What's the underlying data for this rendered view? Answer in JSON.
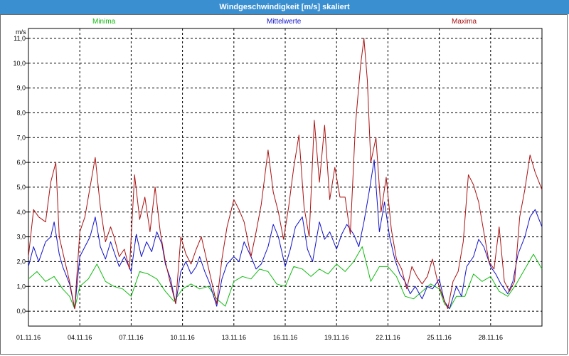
{
  "title": "Windgeschwindigkeit [m/s] skaliert",
  "chart_data": {
    "type": "line",
    "title": "Windgeschwindigkeit [m/s] skaliert",
    "ylabel": "m/s",
    "xlabel": "",
    "x_ticks": [
      "01.11.16",
      "04.11.16",
      "07.11.16",
      "10.11.16",
      "13.11.16",
      "16.11.16",
      "19.11.16",
      "22.11.16",
      "25.11.16",
      "28.11.16"
    ],
    "y_ticks": [
      "0,0",
      "1,0",
      "2,0",
      "3,0",
      "4,0",
      "5,0",
      "6,0",
      "7,0",
      "8,0",
      "9,0",
      "10,0",
      "11,0"
    ],
    "xlim_days": [
      1,
      31
    ],
    "ylim": [
      -0.6,
      11.4
    ],
    "grid": true,
    "legend_position": "top",
    "series": [
      {
        "name": "Minima",
        "color": "#11bb11",
        "days": [
          1,
          1.5,
          2,
          2.5,
          3,
          3.4,
          3.7,
          4,
          4.5,
          5,
          5.5,
          6,
          6.5,
          7,
          7.5,
          8,
          8.5,
          9,
          9.5,
          10,
          10.5,
          11,
          11.5,
          12,
          12.5,
          13,
          13.5,
          14,
          14.5,
          15,
          15.5,
          16,
          16.5,
          17,
          17.5,
          18,
          18.5,
          19,
          19.5,
          20,
          20.5,
          21,
          21.5,
          22,
          22.5,
          23,
          23.5,
          24,
          24.5,
          25,
          25.3,
          25.6,
          26,
          26.5,
          27,
          27.5,
          28,
          28.5,
          29,
          29.5,
          30,
          30.5,
          31
        ],
        "values": [
          1.3,
          1.6,
          1.2,
          1.4,
          0.9,
          0.6,
          0.1,
          1.0,
          1.3,
          1.9,
          1.2,
          1.0,
          0.9,
          0.6,
          1.6,
          1.5,
          1.3,
          0.8,
          0.4,
          0.9,
          1.1,
          0.9,
          1.0,
          0.5,
          0.2,
          1.2,
          1.4,
          1.3,
          1.7,
          1.6,
          1.1,
          1.0,
          1.8,
          1.7,
          1.4,
          1.7,
          1.5,
          1.9,
          1.6,
          2.0,
          2.6,
          1.2,
          1.8,
          1.8,
          1.4,
          0.6,
          0.5,
          0.8,
          1.1,
          0.9,
          0.3,
          0.1,
          0.6,
          0.6,
          1.5,
          1.2,
          1.4,
          0.8,
          0.6,
          1.1,
          1.7,
          2.3,
          1.7
        ]
      },
      {
        "name": "Mittelwerte",
        "color": "#1111cc",
        "days": [
          1,
          1.3,
          1.6,
          2,
          2.3,
          2.5,
          2.8,
          3,
          3.4,
          3.7,
          4,
          4.3,
          4.6,
          4.9,
          5.2,
          5.5,
          5.8,
          6,
          6.3,
          6.6,
          7,
          7.3,
          7.6,
          7.9,
          8.2,
          8.5,
          8.8,
          9,
          9.3,
          9.6,
          9.9,
          10.2,
          10.5,
          10.8,
          11,
          11.3,
          11.6,
          12,
          12.3,
          12.6,
          13,
          13.3,
          13.6,
          14,
          14.3,
          14.6,
          15,
          15.3,
          15.6,
          16,
          16.3,
          16.6,
          17,
          17.3,
          17.6,
          18,
          18.3,
          18.6,
          19,
          19.3,
          19.6,
          20,
          20.3,
          20.6,
          20.9,
          21.2,
          21.5,
          21.8,
          22.1,
          22.4,
          22.7,
          23,
          23.3,
          23.6,
          24,
          24.3,
          24.6,
          25,
          25.3,
          25.6,
          26,
          26.3,
          26.6,
          27,
          27.3,
          27.6,
          28,
          28.3,
          28.6,
          29,
          29.3,
          29.6,
          30,
          30.3,
          30.6,
          31
        ],
        "values": [
          1.8,
          2.6,
          2.0,
          2.8,
          3.0,
          3.6,
          2.3,
          1.8,
          1.1,
          0.1,
          2.2,
          2.6,
          3.0,
          3.8,
          2.6,
          2.1,
          2.8,
          2.4,
          1.8,
          2.2,
          1.6,
          3.1,
          2.2,
          2.8,
          2.4,
          3.2,
          2.7,
          1.9,
          1.3,
          0.3,
          1.6,
          2.0,
          1.5,
          1.8,
          2.2,
          1.6,
          1.1,
          0.2,
          1.3,
          1.9,
          2.2,
          2.0,
          2.8,
          2.2,
          1.7,
          1.9,
          2.6,
          3.5,
          3.0,
          1.8,
          2.5,
          3.4,
          3.8,
          2.5,
          2.0,
          3.6,
          2.9,
          3.2,
          2.5,
          3.1,
          3.5,
          3.1,
          2.6,
          3.6,
          4.8,
          6.1,
          3.2,
          4.4,
          3.0,
          2.1,
          1.5,
          1.2,
          0.7,
          1.0,
          0.5,
          1.0,
          0.9,
          1.3,
          0.4,
          0.1,
          1.0,
          0.6,
          1.8,
          2.2,
          2.9,
          2.6,
          1.8,
          1.5,
          1.1,
          0.7,
          1.2,
          2.3,
          3.0,
          3.8,
          4.1,
          3.4
        ]
      },
      {
        "name": "Maxima",
        "color": "#aa1111",
        "days": [
          1,
          1.3,
          1.6,
          2,
          2.3,
          2.6,
          2.8,
          3,
          3.4,
          3.7,
          4,
          4.3,
          4.6,
          4.9,
          5.2,
          5.5,
          5.8,
          6,
          6.3,
          6.6,
          6.9,
          7.2,
          7.5,
          7.8,
          8.1,
          8.4,
          8.7,
          9,
          9.3,
          9.6,
          9.9,
          10.2,
          10.5,
          10.8,
          11.1,
          11.4,
          11.7,
          12,
          12.3,
          12.6,
          13,
          13.3,
          13.6,
          14,
          14.3,
          14.6,
          15,
          15.3,
          15.6,
          15.9,
          16.2,
          16.5,
          16.8,
          17.1,
          17.4,
          17.7,
          18,
          18.3,
          18.6,
          18.9,
          19.2,
          19.5,
          19.8,
          20.1,
          20.4,
          20.6,
          20.8,
          21,
          21.3,
          21.6,
          21.9,
          22.2,
          22.5,
          22.8,
          23.1,
          23.4,
          23.7,
          24,
          24.3,
          24.6,
          24.9,
          25.2,
          25.5,
          25.8,
          26.1,
          26.4,
          26.7,
          27,
          27.3,
          27.6,
          27.9,
          28.2,
          28.5,
          28.8,
          29.1,
          29.4,
          29.7,
          30,
          30.3,
          30.6,
          31
        ],
        "values": [
          2.2,
          4.1,
          3.8,
          3.6,
          5.2,
          6.0,
          3.0,
          2.4,
          1.2,
          0.1,
          3.2,
          3.8,
          5.0,
          6.2,
          4.2,
          2.8,
          3.4,
          3.0,
          2.2,
          2.5,
          1.7,
          5.5,
          3.7,
          4.6,
          3.2,
          5.0,
          3.2,
          2.0,
          1.1,
          0.3,
          3.0,
          2.3,
          1.9,
          2.5,
          3.0,
          2.1,
          1.2,
          0.3,
          2.1,
          3.4,
          4.5,
          4.1,
          3.6,
          2.2,
          3.2,
          4.3,
          6.5,
          4.8,
          4.0,
          2.9,
          4.2,
          5.8,
          7.1,
          4.2,
          3.0,
          7.7,
          5.2,
          7.5,
          4.5,
          5.8,
          4.6,
          4.6,
          3.1,
          7.5,
          9.9,
          11.0,
          9.3,
          6.0,
          7.0,
          4.0,
          5.4,
          3.3,
          2.1,
          1.7,
          0.9,
          1.8,
          1.4,
          1.1,
          1.4,
          2.1,
          1.2,
          0.6,
          0.1,
          1.2,
          1.6,
          2.8,
          5.5,
          5.1,
          4.4,
          3.2,
          2.0,
          1.7,
          3.4,
          1.2,
          0.8,
          1.2,
          3.8,
          4.9,
          6.3,
          5.6,
          4.9
        ]
      }
    ]
  }
}
